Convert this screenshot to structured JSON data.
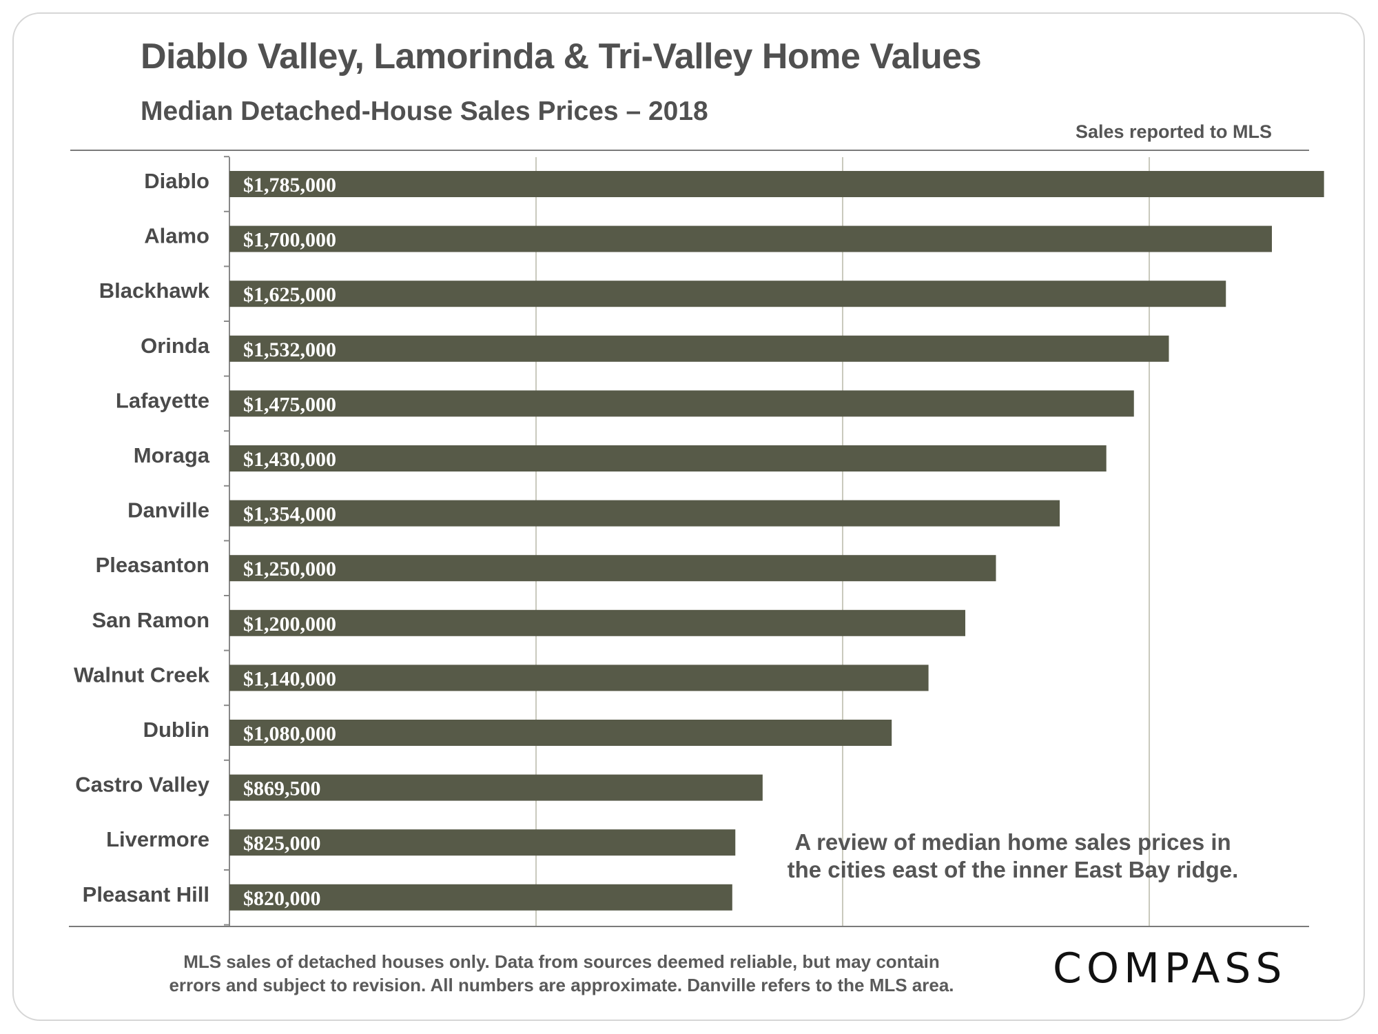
{
  "chart_data": {
    "type": "bar",
    "orientation": "horizontal",
    "title": "Diablo Valley, Lamorinda & Tri-Valley Home Values",
    "subtitle": "Median Detached-House Sales Prices – 2018",
    "source_note": "Sales reported to MLS",
    "categories": [
      "Diablo",
      "Alamo",
      "Blackhawk",
      "Orinda",
      "Lafayette",
      "Moraga",
      "Danville",
      "Pleasanton",
      "San Ramon",
      "Walnut Creek",
      "Dublin",
      "Castro Valley",
      "Livermore",
      "Pleasant Hill"
    ],
    "values": [
      1785000,
      1700000,
      1625000,
      1532000,
      1475000,
      1430000,
      1354000,
      1250000,
      1200000,
      1140000,
      1080000,
      869500,
      825000,
      820000
    ],
    "labels": [
      "$1,785,000",
      "$1,700,000",
      "$1,625,000",
      "$1,532,000",
      "$1,475,000",
      "$1,430,000",
      "$1,354,000",
      "$1,250,000",
      "$1,200,000",
      "$1,140,000",
      "$1,080,000",
      "$869,500",
      "$825,000",
      "$820,000"
    ],
    "xlim": [
      0,
      2000000
    ],
    "gridlines": [
      500000,
      1000000,
      1500000
    ],
    "grid": true,
    "bar_color": "#575a48",
    "annotation": [
      "A review of median home sales prices in",
      "the cities  east of the inner East Bay ridge."
    ]
  },
  "footer": [
    "MLS sales of detached houses  only. Data from sources  deemed reliable, but may contain",
    "errors and subject  to revision. All numbers are approximate. Danville refers to the MLS area."
  ],
  "logo": "COMPASS"
}
